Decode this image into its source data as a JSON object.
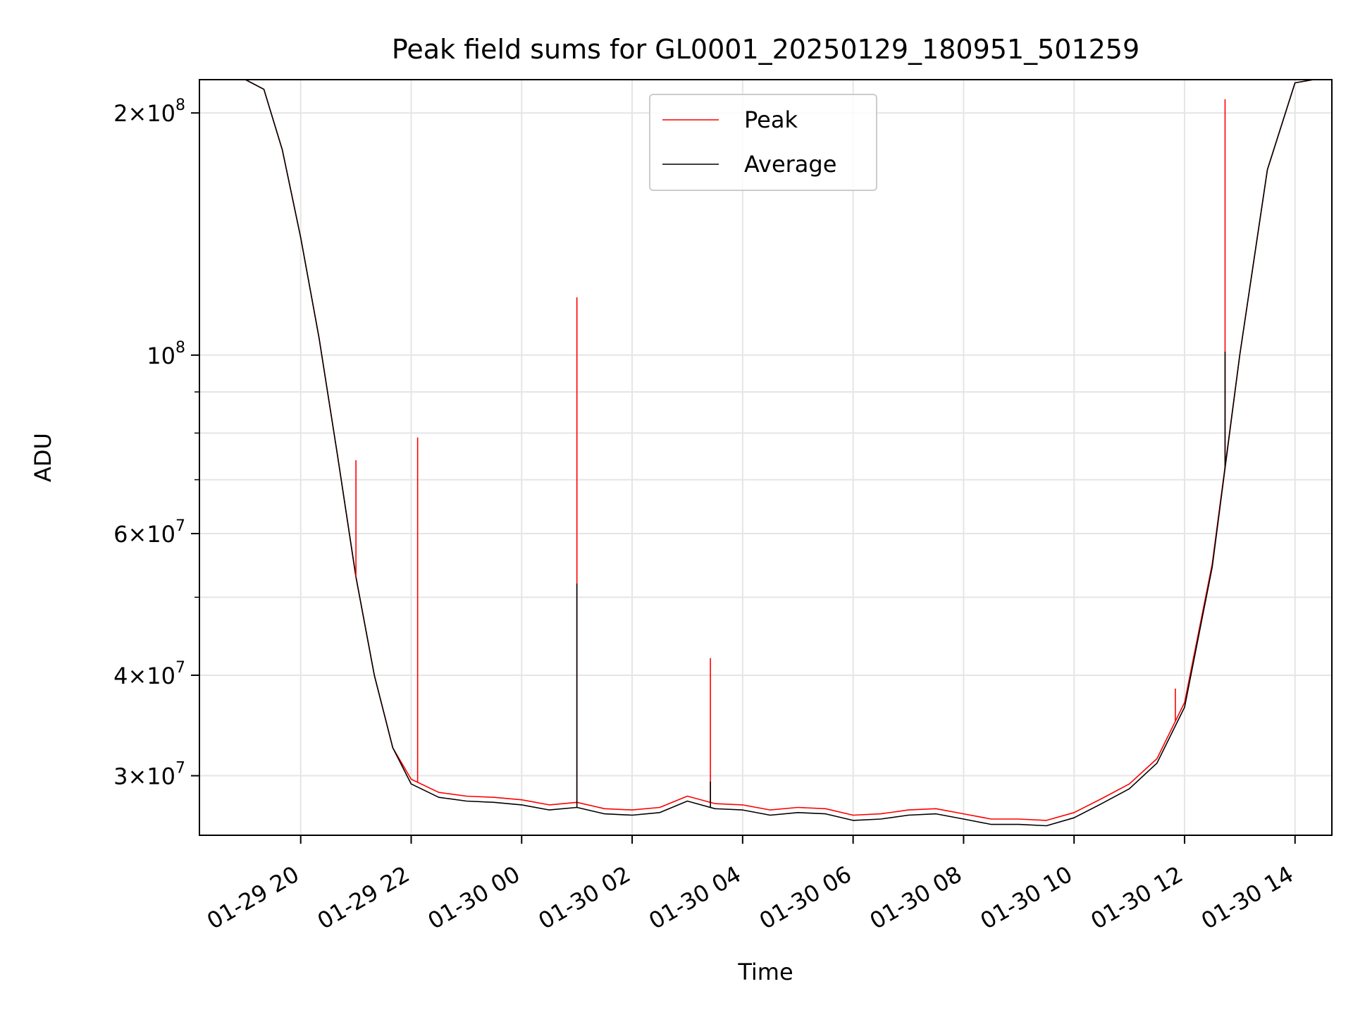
{
  "chart_data": {
    "type": "line",
    "title": "Peak field sums for GL0001_20250129_180951_501259",
    "xlabel": "Time",
    "ylabel": "ADU",
    "y_scale": "log",
    "grid": true,
    "legend_placement": "upper center",
    "xlim": [
      "2025-01-29 18:10",
      "2025-01-30 14:40"
    ],
    "ylim": [
      25300000,
      220000000
    ],
    "x_ticks": [
      "2025-01-29 20:00",
      "2025-01-29 22:00",
      "2025-01-30 00:00",
      "2025-01-30 02:00",
      "2025-01-30 04:00",
      "2025-01-30 06:00",
      "2025-01-30 08:00",
      "2025-01-30 10:00",
      "2025-01-30 12:00",
      "2025-01-30 14:00"
    ],
    "x_tick_labels": [
      "01-29 20",
      "01-29 22",
      "01-30 00",
      "01-30 02",
      "01-30 04",
      "01-30 06",
      "01-30 08",
      "01-30 10",
      "01-30 12",
      "01-30 14"
    ],
    "y_ticks_major": [
      {
        "value": 30000000,
        "mant": "3",
        "exp": "7"
      },
      {
        "value": 40000000,
        "mant": "4",
        "exp": "7"
      },
      {
        "value": 60000000,
        "mant": "6",
        "exp": "7"
      },
      {
        "value": 100000000,
        "mant": "",
        "exp": "8"
      },
      {
        "value": 200000000,
        "mant": "2",
        "exp": "8"
      }
    ],
    "y_ticks_minor": [
      50000000,
      70000000,
      80000000,
      90000000
    ],
    "series": [
      {
        "name": "Peak",
        "color": "#ff0000",
        "points": [
          [
            "2025-01-29 18:10",
            220000000
          ],
          [
            "2025-01-29 19:00",
            220000000
          ],
          [
            "2025-01-29 19:20",
            214000000
          ],
          [
            "2025-01-29 19:40",
            180000000
          ],
          [
            "2025-01-29 20:00",
            140000000
          ],
          [
            "2025-01-29 20:20",
            105000000
          ],
          [
            "2025-01-29 20:40",
            75000000
          ],
          [
            "2025-01-29 21:00",
            53000000
          ],
          [
            "2025-01-29 21:20",
            40000000
          ],
          [
            "2025-01-29 21:40",
            32500000
          ],
          [
            "2025-01-29 22:00",
            29700000
          ],
          [
            "2025-01-29 22:30",
            28600000
          ],
          [
            "2025-01-29 23:00",
            28300000
          ],
          [
            "2025-01-29 23:30",
            28200000
          ],
          [
            "2025-01-30 00:00",
            28000000
          ],
          [
            "2025-01-30 00:30",
            27600000
          ],
          [
            "2025-01-30 01:00",
            27800000
          ],
          [
            "2025-01-30 01:30",
            27300000
          ],
          [
            "2025-01-30 02:00",
            27200000
          ],
          [
            "2025-01-30 02:30",
            27400000
          ],
          [
            "2025-01-30 03:00",
            28300000
          ],
          [
            "2025-01-30 03:30",
            27700000
          ],
          [
            "2025-01-30 04:00",
            27600000
          ],
          [
            "2025-01-30 04:30",
            27200000
          ],
          [
            "2025-01-30 05:00",
            27400000
          ],
          [
            "2025-01-30 05:30",
            27300000
          ],
          [
            "2025-01-30 06:00",
            26800000
          ],
          [
            "2025-01-30 06:30",
            26900000
          ],
          [
            "2025-01-30 07:00",
            27200000
          ],
          [
            "2025-01-30 07:30",
            27300000
          ],
          [
            "2025-01-30 08:00",
            26900000
          ],
          [
            "2025-01-30 08:30",
            26500000
          ],
          [
            "2025-01-30 09:00",
            26500000
          ],
          [
            "2025-01-30 09:30",
            26400000
          ],
          [
            "2025-01-30 10:00",
            27000000
          ],
          [
            "2025-01-30 10:30",
            28100000
          ],
          [
            "2025-01-30 11:00",
            29300000
          ],
          [
            "2025-01-30 11:30",
            31500000
          ],
          [
            "2025-01-30 12:00",
            37000000
          ],
          [
            "2025-01-30 12:30",
            55000000
          ],
          [
            "2025-01-30 13:00",
            100000000
          ],
          [
            "2025-01-30 13:30",
            170000000
          ],
          [
            "2025-01-30 14:00",
            218000000
          ],
          [
            "2025-01-30 14:20",
            220000000
          ]
        ],
        "spikes": [
          [
            "2025-01-29 21:00",
            74000000
          ],
          [
            "2025-01-29 22:07",
            79000000
          ],
          [
            "2025-01-30 01:00",
            118000000
          ],
          [
            "2025-01-30 03:25",
            42000000
          ],
          [
            "2025-01-30 11:50",
            38500000
          ],
          [
            "2025-01-30 12:44",
            208000000
          ]
        ]
      },
      {
        "name": "Average",
        "color": "#000000",
        "points": [
          [
            "2025-01-29 18:10",
            220000000
          ],
          [
            "2025-01-29 19:00",
            220000000
          ],
          [
            "2025-01-29 19:20",
            214000000
          ],
          [
            "2025-01-29 19:40",
            180000000
          ],
          [
            "2025-01-29 20:00",
            140000000
          ],
          [
            "2025-01-29 20:20",
            105000000
          ],
          [
            "2025-01-29 20:40",
            75000000
          ],
          [
            "2025-01-29 21:00",
            53000000
          ],
          [
            "2025-01-29 21:20",
            40000000
          ],
          [
            "2025-01-29 21:40",
            32500000
          ],
          [
            "2025-01-29 22:00",
            29300000
          ],
          [
            "2025-01-29 22:30",
            28200000
          ],
          [
            "2025-01-29 23:00",
            27900000
          ],
          [
            "2025-01-29 23:30",
            27800000
          ],
          [
            "2025-01-30 00:00",
            27600000
          ],
          [
            "2025-01-30 00:30",
            27200000
          ],
          [
            "2025-01-30 01:00",
            27400000
          ],
          [
            "2025-01-30 01:30",
            26900000
          ],
          [
            "2025-01-30 02:00",
            26800000
          ],
          [
            "2025-01-30 02:30",
            27000000
          ],
          [
            "2025-01-30 03:00",
            27900000
          ],
          [
            "2025-01-30 03:30",
            27300000
          ],
          [
            "2025-01-30 04:00",
            27200000
          ],
          [
            "2025-01-30 04:30",
            26800000
          ],
          [
            "2025-01-30 05:00",
            27000000
          ],
          [
            "2025-01-30 05:30",
            26900000
          ],
          [
            "2025-01-30 06:00",
            26400000
          ],
          [
            "2025-01-30 06:30",
            26500000
          ],
          [
            "2025-01-30 07:00",
            26800000
          ],
          [
            "2025-01-30 07:30",
            26900000
          ],
          [
            "2025-01-30 08:00",
            26500000
          ],
          [
            "2025-01-30 08:30",
            26100000
          ],
          [
            "2025-01-30 09:00",
            26100000
          ],
          [
            "2025-01-30 09:30",
            26000000
          ],
          [
            "2025-01-30 10:00",
            26600000
          ],
          [
            "2025-01-30 10:30",
            27700000
          ],
          [
            "2025-01-30 11:00",
            28900000
          ],
          [
            "2025-01-30 11:30",
            31100000
          ],
          [
            "2025-01-30 12:00",
            36500000
          ],
          [
            "2025-01-30 12:30",
            54500000
          ],
          [
            "2025-01-30 13:00",
            100000000
          ],
          [
            "2025-01-30 13:30",
            170000000
          ],
          [
            "2025-01-30 14:00",
            218000000
          ],
          [
            "2025-01-30 14:20",
            220000000
          ]
        ],
        "spikes": [
          [
            "2025-01-30 01:00",
            52000000
          ],
          [
            "2025-01-30 03:25",
            29500000
          ],
          [
            "2025-01-30 12:44",
            101000000
          ]
        ]
      }
    ]
  }
}
